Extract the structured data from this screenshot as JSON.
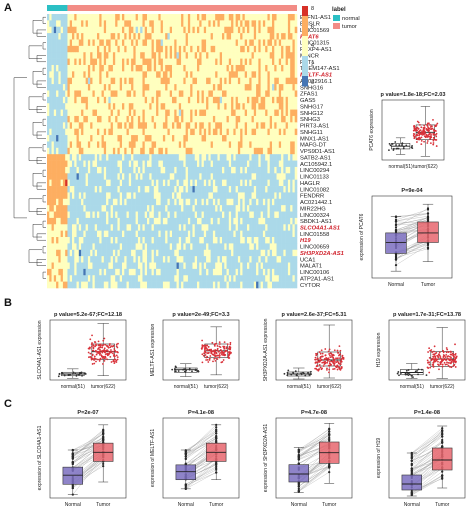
{
  "panels": {
    "a": "A",
    "b": "B",
    "c": "C"
  },
  "heatmap": {
    "legend_title": "label",
    "legend_items": [
      {
        "label": "normal",
        "color": "#2bbfc4"
      },
      {
        "label": "tumor",
        "color": "#f28c86"
      }
    ],
    "color_ticks": [
      "8",
      "6",
      "4",
      "2",
      "0"
    ],
    "color_scale": [
      "#d73027",
      "#fdae61",
      "#ffffbf",
      "#abd9e9",
      "#4575b4"
    ],
    "genes": [
      {
        "name": "ELFN1-AS1",
        "highlight": false
      },
      {
        "name": "EMSLR",
        "highlight": false
      },
      {
        "name": "LINC01569",
        "highlight": false
      },
      {
        "name": "PCAT6",
        "highlight": true
      },
      {
        "name": "LINC01315",
        "highlight": false
      },
      {
        "name": "FOXP4-AS1",
        "highlight": false
      },
      {
        "name": "MINCR",
        "highlight": false
      },
      {
        "name": "PVT1",
        "highlight": false
      },
      {
        "name": "TMEM147-AS1",
        "highlight": false
      },
      {
        "name": "MELTF-AS1",
        "highlight": true
      },
      {
        "name": "AC022916.1",
        "highlight": false
      },
      {
        "name": "SNHG16",
        "highlight": false
      },
      {
        "name": "ZFAS1",
        "highlight": false
      },
      {
        "name": "GAS5",
        "highlight": false
      },
      {
        "name": "SNHG17",
        "highlight": false
      },
      {
        "name": "SNHG12",
        "highlight": false
      },
      {
        "name": "SNHG3",
        "highlight": false
      },
      {
        "name": "PIRT3-AS1",
        "highlight": false
      },
      {
        "name": "SNHG11",
        "highlight": false
      },
      {
        "name": "MNX1-AS1",
        "highlight": false
      },
      {
        "name": "MAFG-DT",
        "highlight": false
      },
      {
        "name": "VPS9D1-AS1",
        "highlight": false
      },
      {
        "name": "SATB2-AS1",
        "highlight": false
      },
      {
        "name": "AC105942.1",
        "highlight": false
      },
      {
        "name": "LINC00294",
        "highlight": false
      },
      {
        "name": "LINC01133",
        "highlight": false
      },
      {
        "name": "HAGLR",
        "highlight": false
      },
      {
        "name": "LINC01082",
        "highlight": false
      },
      {
        "name": "FENDRR",
        "highlight": false
      },
      {
        "name": "AC021442.1",
        "highlight": false
      },
      {
        "name": "MIR22HG",
        "highlight": false
      },
      {
        "name": "LINC00324",
        "highlight": false
      },
      {
        "name": "SBDK1-AS1",
        "highlight": false
      },
      {
        "name": "SLCO4A1-AS1",
        "highlight": true
      },
      {
        "name": "LINC01558",
        "highlight": false
      },
      {
        "name": "H19",
        "highlight": true
      },
      {
        "name": "LINC00659",
        "highlight": false
      },
      {
        "name": "SH3PXD2A-AS1",
        "highlight": true
      },
      {
        "name": "UCA1",
        "highlight": false
      },
      {
        "name": "MALAT1",
        "highlight": false
      },
      {
        "name": "LINC00106",
        "highlight": false
      },
      {
        "name": "ATP2A1-AS1",
        "highlight": false
      },
      {
        "name": "CYTOR",
        "highlight": false
      }
    ]
  },
  "chart_data": [
    {
      "type": "box",
      "id": "A-PCAT6-unpaired",
      "title": "p value=1.8e-18;FC=2.03",
      "ylabel": "PCAT6 expression",
      "categories": [
        "normal(51)",
        "tumor(622)"
      ],
      "boxes": [
        {
          "min": 0.6,
          "q1": 1.2,
          "median": 1.5,
          "q3": 1.8,
          "max": 2.4
        },
        {
          "min": 0.4,
          "q1": 2.2,
          "median": 3.0,
          "q3": 3.8,
          "max": 5.8
        }
      ],
      "ylim": [
        0,
        6.5
      ]
    },
    {
      "type": "box",
      "id": "A-PCAT6-paired",
      "title": "P=9e-04",
      "ylabel": "expression of PCAT6",
      "categories": [
        "Normal",
        "Tumor"
      ],
      "boxes": [
        {
          "min": 0.5,
          "q1": 1.8,
          "median": 2.6,
          "q3": 3.3,
          "max": 4.5
        },
        {
          "min": 1.2,
          "q1": 2.6,
          "median": 3.3,
          "q3": 4.1,
          "max": 5.4
        }
      ],
      "ylim": [
        0,
        6
      ]
    },
    {
      "type": "box",
      "id": "B-SLCO4A1-AS1",
      "title": "p value=5.2e-67;FC=12.18",
      "ylabel": "SLCO4A1-AS1 expression",
      "categories": [
        "normal(51)",
        "tumor(622)"
      ],
      "boxes": [
        {
          "min": 0.2,
          "q1": 0.5,
          "median": 0.7,
          "q3": 0.9,
          "max": 1.3
        },
        {
          "min": 0.5,
          "q1": 2.4,
          "median": 3.3,
          "q3": 4.2,
          "max": 6.6
        }
      ],
      "ylim": [
        0,
        7
      ]
    },
    {
      "type": "box",
      "id": "B-MELTF-AS1",
      "title": "p value=2e-49;FC=3.3",
      "ylabel": "MELTF-AS1 expression",
      "categories": [
        "normal(51)",
        "tumor(622)"
      ],
      "boxes": [
        {
          "min": 0.4,
          "q1": 0.9,
          "median": 1.2,
          "q3": 1.4,
          "max": 1.9
        },
        {
          "min": 0.6,
          "q1": 2.6,
          "median": 3.4,
          "q3": 4.2,
          "max": 6.2
        }
      ],
      "ylim": [
        0,
        7
      ]
    },
    {
      "type": "box",
      "id": "B-SH3PXD2A-AS1",
      "title": "p value=2.6e-37;FC=5.31",
      "ylabel": "SH3PXD2A-AS1 expression",
      "categories": [
        "normal(51)",
        "tumor(622)"
      ],
      "boxes": [
        {
          "min": 0.1,
          "q1": 0.4,
          "median": 0.6,
          "q3": 0.8,
          "max": 1.2
        },
        {
          "min": 0.2,
          "q1": 1.4,
          "median": 2.0,
          "q3": 2.8,
          "max": 5.5
        }
      ],
      "ylim": [
        0,
        6
      ]
    },
    {
      "type": "box",
      "id": "B-H19",
      "title": "p value=1.7e-31;FC=13.78",
      "ylabel": "H19 expression",
      "categories": [
        "normal(51)",
        "tumor(622)"
      ],
      "boxes": [
        {
          "min": 0.2,
          "q1": 0.7,
          "median": 1.0,
          "q3": 1.4,
          "max": 2.2
        },
        {
          "min": 0.2,
          "q1": 1.8,
          "median": 2.8,
          "q3": 3.8,
          "max": 7.0
        }
      ],
      "ylim": [
        0,
        8
      ]
    },
    {
      "type": "box",
      "id": "C-SLCO4A1-AS1",
      "title": "P=2e-07",
      "ylabel": "expression of SLCO4A1-AS1",
      "categories": [
        "Normal",
        "Tumor"
      ],
      "boxes": [
        {
          "min": 0.3,
          "q1": 1.2,
          "median": 2.0,
          "q3": 2.7,
          "max": 4.2
        },
        {
          "min": 1.4,
          "q1": 3.2,
          "median": 4.0,
          "q3": 4.8,
          "max": 6.4
        }
      ],
      "ylim": [
        0,
        7
      ]
    },
    {
      "type": "box",
      "id": "C-MELTF-AS1",
      "title": "P=4.1e-08",
      "ylabel": "expression of MELTF-AS1",
      "categories": [
        "Normal",
        "Tumor"
      ],
      "boxes": [
        {
          "min": 0.8,
          "q1": 1.6,
          "median": 2.3,
          "q3": 2.9,
          "max": 4.2
        },
        {
          "min": 1.6,
          "q1": 3.2,
          "median": 4.0,
          "q3": 4.8,
          "max": 6.4
        }
      ],
      "ylim": [
        0,
        7
      ]
    },
    {
      "type": "box",
      "id": "C-SH3PXD2A-AS1",
      "title": "P=4.7e-08",
      "ylabel": "expression of SH3PXD2A-AS1",
      "categories": [
        "Normal",
        "Tumor"
      ],
      "boxes": [
        {
          "min": 0.4,
          "q1": 1.2,
          "median": 1.8,
          "q3": 2.5,
          "max": 3.8
        },
        {
          "min": 1.1,
          "q1": 2.6,
          "median": 3.4,
          "q3": 4.2,
          "max": 5.6
        }
      ],
      "ylim": [
        0,
        6
      ]
    },
    {
      "type": "box",
      "id": "C-H19",
      "title": "P=1.4e-08",
      "ylabel": "expression of H19",
      "categories": [
        "Normal",
        "Tumor"
      ],
      "boxes": [
        {
          "min": 0.2,
          "q1": 0.8,
          "median": 1.4,
          "q3": 2.3,
          "max": 4.5
        },
        {
          "min": 1.0,
          "q1": 2.8,
          "median": 3.8,
          "q3": 5.0,
          "max": 7.2
        }
      ],
      "ylim": [
        0,
        8
      ]
    }
  ],
  "colors": {
    "normal_fill": "#7b6ec0",
    "tumor_fill": "#e8666f",
    "normal_point": "#333333",
    "tumor_point": "#d9323a",
    "highlight_text": "#d0202a",
    "paired_line": "#999999"
  }
}
